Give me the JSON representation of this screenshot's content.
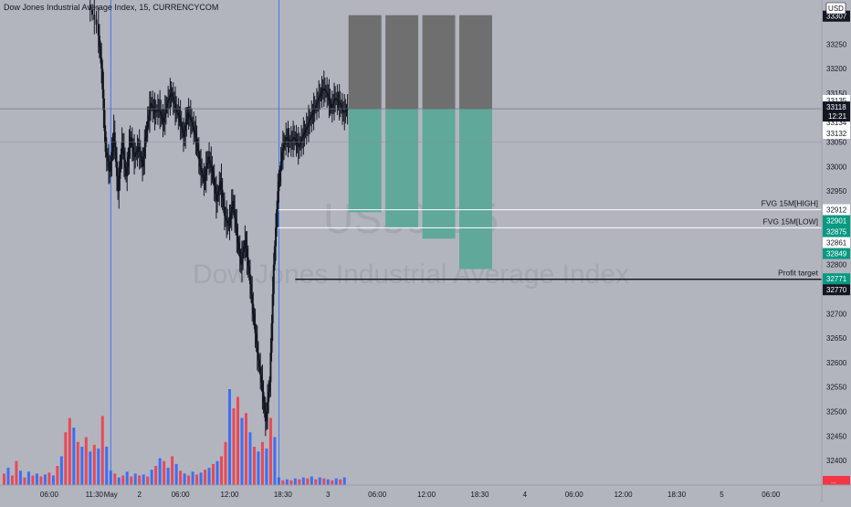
{
  "header": {
    "symbol_title": "Dow Jones Industrial Average Index, 15, CURRENCYCOM",
    "currency": "USD"
  },
  "watermark": {
    "symbol": "US30, 15",
    "description": "Dow Jones Industrial Average Index"
  },
  "colors": {
    "background": "#b2b5be",
    "candle": "#131722",
    "volume_up": "#2962ff",
    "volume_down": "#f23645",
    "profit_zone": "#5fa89a",
    "loss_zone": "#6f6f6f",
    "session_line": "#2962ff",
    "level_line": "#ffffff",
    "target_line": "#000000"
  },
  "chart_data": {
    "type": "candlestick",
    "title": "Dow Jones Industrial Average Index, 15, CURRENCYCOM",
    "price_axis": {
      "range": [
        32350,
        33340
      ],
      "ticks": [
        33250,
        33200,
        33150,
        33050,
        33000,
        32950,
        32800,
        32750,
        32700,
        32650,
        32600,
        32550,
        32500,
        32450,
        32400
      ]
    },
    "time_axis": {
      "ticks": [
        {
          "label": "06:00",
          "x": 6
        },
        {
          "label": "11:30",
          "x": 11.5
        },
        {
          "label": "May",
          "x": 13.5
        },
        {
          "label": "2",
          "x": 17
        },
        {
          "label": "06:00",
          "x": 22
        },
        {
          "label": "12:00",
          "x": 28
        },
        {
          "label": "18:30",
          "x": 34.5
        },
        {
          "label": "3",
          "x": 40
        },
        {
          "label": "06:00",
          "x": 46
        },
        {
          "label": "12:00",
          "x": 52
        },
        {
          "label": "18:30",
          "x": 58.5
        },
        {
          "label": "4",
          "x": 64
        },
        {
          "label": "06:00",
          "x": 70
        },
        {
          "label": "12:00",
          "x": 76
        },
        {
          "label": "18:30",
          "x": 82.5
        },
        {
          "label": "5",
          "x": 88
        },
        {
          "label": "06:00",
          "x": 94
        }
      ],
      "range": [
        0,
        100.2
      ],
      "unit": "hours from first label date 00:00"
    },
    "price_path": [
      [
        11,
        33330
      ],
      [
        12,
        33290
      ],
      [
        12.5,
        33200
      ],
      [
        13,
        33030
      ],
      [
        13.5,
        32990
      ],
      [
        14,
        33070
      ],
      [
        14.5,
        32950
      ],
      [
        15,
        33050
      ],
      [
        15.5,
        32980
      ],
      [
        16,
        33060
      ],
      [
        16.5,
        33020
      ],
      [
        17,
        33040
      ],
      [
        17.5,
        33000
      ],
      [
        18,
        33080
      ],
      [
        18.5,
        33130
      ],
      [
        19,
        33110
      ],
      [
        19.5,
        33120
      ],
      [
        20,
        33090
      ],
      [
        20.5,
        33130
      ],
      [
        21,
        33150
      ],
      [
        21.5,
        33120
      ],
      [
        22,
        33100
      ],
      [
        22.5,
        33060
      ],
      [
        23,
        33110
      ],
      [
        23.5,
        33090
      ],
      [
        24,
        33060
      ],
      [
        24.5,
        33000
      ],
      [
        25,
        32970
      ],
      [
        25.5,
        33020
      ],
      [
        26,
        32990
      ],
      [
        26.5,
        32930
      ],
      [
        27,
        32970
      ],
      [
        27.5,
        32900
      ],
      [
        28,
        32880
      ],
      [
        28.5,
        32930
      ],
      [
        29,
        32860
      ],
      [
        29.5,
        32800
      ],
      [
        30,
        32850
      ],
      [
        30.5,
        32780
      ],
      [
        31,
        32700
      ],
      [
        31.5,
        32620
      ],
      [
        32,
        32560
      ],
      [
        32.5,
        32480
      ],
      [
        33,
        32560
      ],
      [
        33.5,
        32800
      ],
      [
        34,
        32950
      ],
      [
        34.5,
        33030
      ],
      [
        35,
        33060
      ],
      [
        35.5,
        33050
      ],
      [
        36,
        33060
      ],
      [
        36.5,
        33040
      ],
      [
        37,
        33060
      ],
      [
        37.5,
        33080
      ],
      [
        38,
        33100
      ],
      [
        38.5,
        33120
      ],
      [
        39,
        33140
      ],
      [
        39.5,
        33160
      ],
      [
        40,
        33150
      ],
      [
        40.5,
        33120
      ],
      [
        41,
        33140
      ],
      [
        41.5,
        33130
      ],
      [
        42,
        33110
      ],
      [
        42.5,
        33118
      ]
    ],
    "volume": {
      "max": 100,
      "bars": [
        {
          "x": 0.5,
          "v": 12,
          "dir": "down"
        },
        {
          "x": 1,
          "v": 18,
          "dir": "up"
        },
        {
          "x": 1.5,
          "v": 10,
          "dir": "down"
        },
        {
          "x": 2,
          "v": 25,
          "dir": "down"
        },
        {
          "x": 2.5,
          "v": 15,
          "dir": "up"
        },
        {
          "x": 3,
          "v": 8,
          "dir": "down"
        },
        {
          "x": 3.5,
          "v": 14,
          "dir": "up"
        },
        {
          "x": 4,
          "v": 10,
          "dir": "down"
        },
        {
          "x": 4.5,
          "v": 12,
          "dir": "up"
        },
        {
          "x": 5,
          "v": 9,
          "dir": "down"
        },
        {
          "x": 5.5,
          "v": 11,
          "dir": "up"
        },
        {
          "x": 6,
          "v": 13,
          "dir": "down"
        },
        {
          "x": 6.5,
          "v": 10,
          "dir": "up"
        },
        {
          "x": 7,
          "v": 20,
          "dir": "down"
        },
        {
          "x": 7.5,
          "v": 30,
          "dir": "up"
        },
        {
          "x": 8,
          "v": 55,
          "dir": "down"
        },
        {
          "x": 8.5,
          "v": 70,
          "dir": "down"
        },
        {
          "x": 9,
          "v": 60,
          "dir": "up"
        },
        {
          "x": 9.5,
          "v": 45,
          "dir": "down"
        },
        {
          "x": 10,
          "v": 40,
          "dir": "up"
        },
        {
          "x": 10.5,
          "v": 50,
          "dir": "down"
        },
        {
          "x": 11,
          "v": 35,
          "dir": "up"
        },
        {
          "x": 11.5,
          "v": 42,
          "dir": "down"
        },
        {
          "x": 12,
          "v": 38,
          "dir": "up"
        },
        {
          "x": 12.5,
          "v": 72,
          "dir": "down"
        },
        {
          "x": 13,
          "v": 40,
          "dir": "up"
        },
        {
          "x": 13.5,
          "v": 15,
          "dir": "up"
        },
        {
          "x": 14,
          "v": 12,
          "dir": "down"
        },
        {
          "x": 14.5,
          "v": 8,
          "dir": "up"
        },
        {
          "x": 15,
          "v": 10,
          "dir": "down"
        },
        {
          "x": 15.5,
          "v": 14,
          "dir": "up"
        },
        {
          "x": 16,
          "v": 9,
          "dir": "down"
        },
        {
          "x": 16.5,
          "v": 12,
          "dir": "up"
        },
        {
          "x": 17,
          "v": 10,
          "dir": "down"
        },
        {
          "x": 17.5,
          "v": 11,
          "dir": "up"
        },
        {
          "x": 18,
          "v": 9,
          "dir": "down"
        },
        {
          "x": 18.5,
          "v": 16,
          "dir": "up"
        },
        {
          "x": 19,
          "v": 20,
          "dir": "down"
        },
        {
          "x": 19.5,
          "v": 28,
          "dir": "up"
        },
        {
          "x": 20,
          "v": 25,
          "dir": "down"
        },
        {
          "x": 20.5,
          "v": 18,
          "dir": "up"
        },
        {
          "x": 21,
          "v": 30,
          "dir": "down"
        },
        {
          "x": 21.5,
          "v": 22,
          "dir": "up"
        },
        {
          "x": 22,
          "v": 15,
          "dir": "down"
        },
        {
          "x": 22.5,
          "v": 12,
          "dir": "up"
        },
        {
          "x": 23,
          "v": 10,
          "dir": "down"
        },
        {
          "x": 23.5,
          "v": 14,
          "dir": "up"
        },
        {
          "x": 24,
          "v": 11,
          "dir": "down"
        },
        {
          "x": 24.5,
          "v": 13,
          "dir": "up"
        },
        {
          "x": 25,
          "v": 16,
          "dir": "down"
        },
        {
          "x": 25.5,
          "v": 18,
          "dir": "up"
        },
        {
          "x": 26,
          "v": 22,
          "dir": "down"
        },
        {
          "x": 26.5,
          "v": 25,
          "dir": "up"
        },
        {
          "x": 27,
          "v": 30,
          "dir": "down"
        },
        {
          "x": 27.5,
          "v": 45,
          "dir": "down"
        },
        {
          "x": 28,
          "v": 100,
          "dir": "up"
        },
        {
          "x": 28.5,
          "v": 80,
          "dir": "down"
        },
        {
          "x": 29,
          "v": 92,
          "dir": "down"
        },
        {
          "x": 29.5,
          "v": 70,
          "dir": "up"
        },
        {
          "x": 30,
          "v": 75,
          "dir": "down"
        },
        {
          "x": 30.5,
          "v": 55,
          "dir": "up"
        },
        {
          "x": 31,
          "v": 40,
          "dir": "down"
        },
        {
          "x": 31.5,
          "v": 35,
          "dir": "up"
        },
        {
          "x": 32,
          "v": 45,
          "dir": "down"
        },
        {
          "x": 32.5,
          "v": 38,
          "dir": "up"
        },
        {
          "x": 33,
          "v": 70,
          "dir": "down"
        },
        {
          "x": 33.5,
          "v": 50,
          "dir": "up"
        },
        {
          "x": 34,
          "v": 8,
          "dir": "up"
        },
        {
          "x": 34.5,
          "v": 5,
          "dir": "down"
        },
        {
          "x": 35,
          "v": 6,
          "dir": "up"
        },
        {
          "x": 35.5,
          "v": 5,
          "dir": "down"
        },
        {
          "x": 36,
          "v": 7,
          "dir": "up"
        },
        {
          "x": 36.5,
          "v": 6,
          "dir": "down"
        },
        {
          "x": 37,
          "v": 8,
          "dir": "up"
        },
        {
          "x": 37.5,
          "v": 7,
          "dir": "down"
        },
        {
          "x": 38,
          "v": 9,
          "dir": "up"
        },
        {
          "x": 38.5,
          "v": 6,
          "dir": "down"
        },
        {
          "x": 39,
          "v": 8,
          "dir": "up"
        },
        {
          "x": 39.5,
          "v": 7,
          "dir": "down"
        },
        {
          "x": 40,
          "v": 6,
          "dir": "up"
        },
        {
          "x": 40.5,
          "v": 5,
          "dir": "down"
        },
        {
          "x": 41,
          "v": 7,
          "dir": "up"
        },
        {
          "x": 41.5,
          "v": 6,
          "dir": "down"
        },
        {
          "x": 42,
          "v": 8,
          "dir": "up"
        }
      ]
    },
    "session_lines_x": [
      13.5,
      34
    ],
    "current_price": {
      "value": "33118",
      "countdown": "12:21"
    },
    "levels": [
      {
        "name": "FVG 15M[HIGH]",
        "price": 32912,
        "x_start": 33.8
      },
      {
        "name": "FVG 15M[LOW]",
        "price": 32875,
        "x_start": 33.8
      }
    ],
    "profit_target": {
      "label": "Profit target",
      "price": 32770,
      "x_start": 36
    },
    "positions": [
      {
        "x_start": 42.5,
        "x_end": 46.5,
        "entry": 33118,
        "stop": 33309,
        "target": 32907
      },
      {
        "x_start": 47,
        "x_end": 51,
        "entry": 33118,
        "stop": 33309,
        "target": 32875
      },
      {
        "x_start": 51.5,
        "x_end": 55.5,
        "entry": 33118,
        "stop": 33309,
        "target": 32853
      },
      {
        "x_start": 56,
        "x_end": 60,
        "entry": 33118,
        "stop": 33309,
        "target": 32791
      }
    ],
    "price_labels": [
      {
        "text": "33307",
        "price": 33307,
        "bg": "#131722",
        "color": "#ffffff"
      },
      {
        "text": "33135",
        "price": 33135,
        "bg": "#ffffff",
        "color": "#131722"
      },
      {
        "text": "33134",
        "price": 33134,
        "bg": "#ffffff",
        "color": "#131722"
      },
      {
        "text": "33134",
        "price": 33134,
        "bg": "#ffffff",
        "color": "#131722"
      },
      {
        "text": "33132",
        "price": 33132,
        "bg": "#ffffff",
        "color": "#131722"
      },
      {
        "text": "32912",
        "price": 32912,
        "bg": "#ffffff",
        "color": "#131722"
      },
      {
        "text": "32901",
        "price": 32901,
        "bg": "#089981",
        "color": "#ffffff"
      },
      {
        "text": "32875",
        "price": 32875,
        "bg": "#089981",
        "color": "#ffffff"
      },
      {
        "text": "32861",
        "price": 32861,
        "bg": "#ffffff",
        "color": "#131722"
      },
      {
        "text": "32849",
        "price": 32849,
        "bg": "#089981",
        "color": "#ffffff"
      },
      {
        "text": "32771",
        "price": 32771,
        "bg": "#089981",
        "color": "#ffffff"
      },
      {
        "text": "32770",
        "price": 32770,
        "bg": "#131722",
        "color": "#ffffff"
      }
    ],
    "volume_axis_label": {
      "text": "...",
      "bg": "#f23645"
    }
  }
}
